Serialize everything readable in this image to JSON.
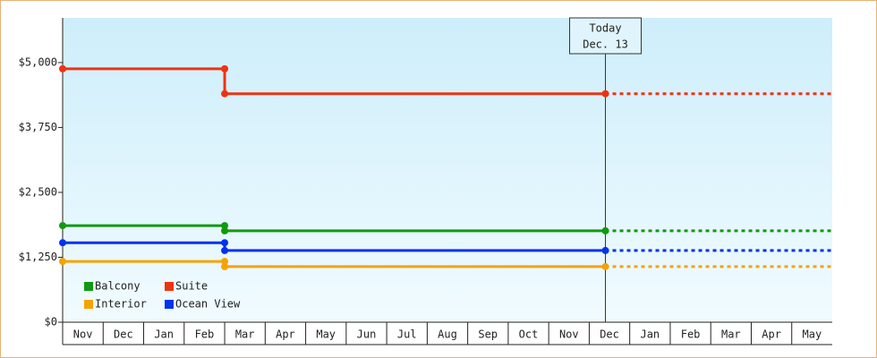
{
  "chart_data": {
    "type": "step-line",
    "categories": [
      "Nov",
      "Dec",
      "Jan",
      "Feb",
      "Mar",
      "Apr",
      "May",
      "Jun",
      "Jul",
      "Aug",
      "Sep",
      "Oct",
      "Nov",
      "Dec",
      "Jan",
      "Feb",
      "Mar",
      "Apr",
      "May"
    ],
    "xlim": [
      0,
      19
    ],
    "x": [
      0,
      4,
      4,
      13.4
    ],
    "today": 13.4,
    "annotation": [
      "Today",
      "Dec. 13"
    ],
    "ylim": [
      0,
      5860
    ],
    "yticks": [
      {
        "value": 0,
        "label": "$0"
      },
      {
        "value": 1250,
        "label": "$1,250"
      },
      {
        "value": 2500,
        "label": "$2,500"
      },
      {
        "value": 3750,
        "label": "$3,750"
      },
      {
        "value": 5000,
        "label": "$5,000"
      }
    ],
    "series": [
      {
        "name": "Balcony",
        "color": "#119911",
        "values": [
          1860,
          1860,
          1760,
          1760
        ]
      },
      {
        "name": "Suite",
        "color": "#ee3311",
        "values": [
          4880,
          4880,
          4400,
          4400
        ]
      },
      {
        "name": "Interior",
        "color": "#f5a300",
        "values": [
          1170,
          1170,
          1070,
          1070
        ]
      },
      {
        "name": "Ocean View",
        "color": "#0033ee",
        "values": [
          1530,
          1530,
          1380,
          1380
        ]
      }
    ]
  }
}
